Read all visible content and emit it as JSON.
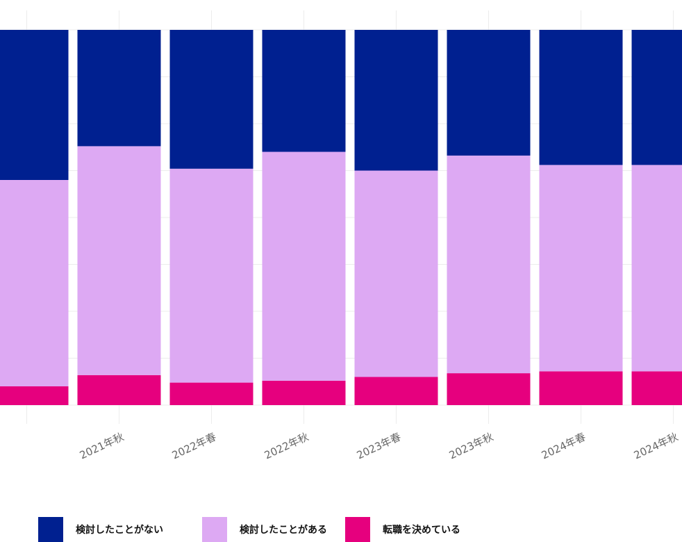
{
  "chart_data": {
    "type": "bar",
    "stacked": true,
    "categories": [
      "",
      "2021年秋",
      "2022年春",
      "2022年秋",
      "2023年春",
      "2023年秋",
      "2024年春",
      "2024年秋"
    ],
    "series": [
      {
        "name": "転職を決めている",
        "color": "#e6007e",
        "values": [
          5,
          8,
          6,
          6.5,
          7.5,
          8.5,
          9,
          9
        ]
      },
      {
        "name": "検討したことがある",
        "color": "#dda9f3",
        "values": [
          55,
          61,
          57,
          61,
          55,
          58,
          55,
          55
        ]
      },
      {
        "name": "検討したことがない",
        "color": "#002090",
        "values": [
          40,
          31,
          37,
          32.5,
          37.5,
          33.5,
          36,
          36
        ]
      }
    ],
    "ylim": [
      0,
      100
    ],
    "grid": true,
    "legend_position": "bottom"
  },
  "legend": {
    "items": [
      {
        "label": "検討したことがない",
        "color": "#002090"
      },
      {
        "label": "検討したことがある",
        "color": "#dda9f3"
      },
      {
        "label": "転職を決めている",
        "color": "#e6007e"
      }
    ]
  }
}
